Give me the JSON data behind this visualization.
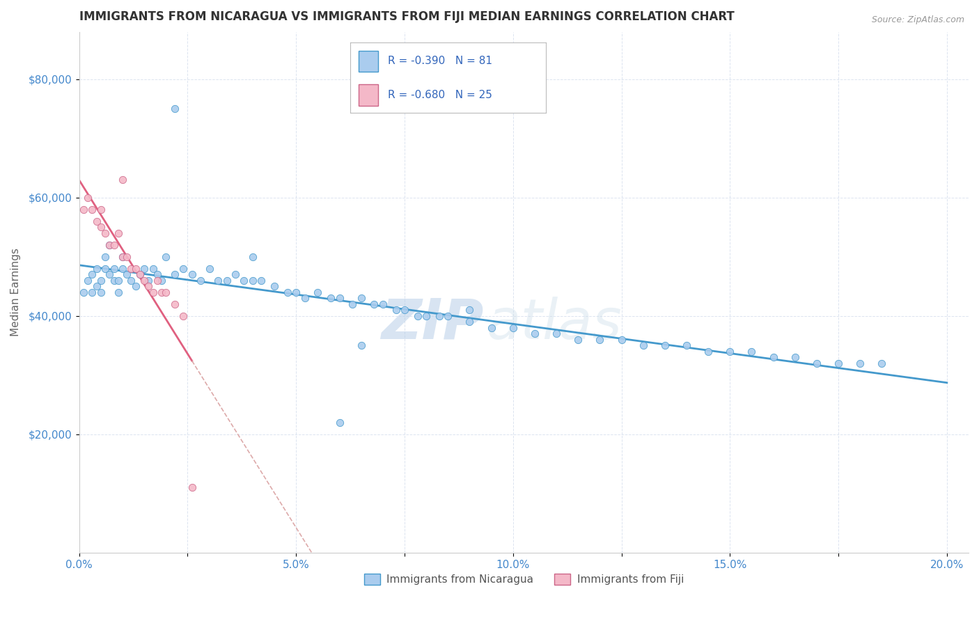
{
  "title": "IMMIGRANTS FROM NICARAGUA VS IMMIGRANTS FROM FIJI MEDIAN EARNINGS CORRELATION CHART",
  "source": "Source: ZipAtlas.com",
  "ylabel": "Median Earnings",
  "xlim": [
    0.0,
    0.205
  ],
  "ylim": [
    0,
    88000
  ],
  "xtick_labels": [
    "0.0%",
    "",
    "5.0%",
    "",
    "10.0%",
    "",
    "15.0%",
    "",
    "20.0%"
  ],
  "xtick_vals": [
    0.0,
    0.025,
    0.05,
    0.075,
    0.1,
    0.125,
    0.15,
    0.175,
    0.2
  ],
  "ytick_vals": [
    20000,
    40000,
    60000,
    80000
  ],
  "ytick_labels": [
    "$20,000",
    "$40,000",
    "$60,000",
    "$80,000"
  ],
  "nicaragua_color": "#aaccee",
  "fiji_color": "#f4b8c8",
  "nicaragua_line_color": "#4499cc",
  "fiji_line_color": "#e06080",
  "watermark_zip": "ZIP",
  "watermark_atlas": "atlas",
  "R_nicaragua": -0.39,
  "N_nicaragua": 81,
  "R_fiji": -0.68,
  "N_fiji": 25,
  "legend_label_nicaragua": "Immigrants from Nicaragua",
  "legend_label_fiji": "Immigrants from Fiji",
  "nicaragua_x": [
    0.001,
    0.002,
    0.003,
    0.003,
    0.004,
    0.004,
    0.005,
    0.005,
    0.006,
    0.006,
    0.007,
    0.007,
    0.008,
    0.008,
    0.009,
    0.009,
    0.01,
    0.01,
    0.011,
    0.012,
    0.013,
    0.014,
    0.015,
    0.016,
    0.017,
    0.018,
    0.019,
    0.02,
    0.022,
    0.024,
    0.026,
    0.028,
    0.03,
    0.032,
    0.034,
    0.036,
    0.038,
    0.04,
    0.042,
    0.045,
    0.048,
    0.05,
    0.052,
    0.055,
    0.058,
    0.06,
    0.063,
    0.065,
    0.068,
    0.07,
    0.073,
    0.075,
    0.078,
    0.08,
    0.083,
    0.085,
    0.09,
    0.095,
    0.1,
    0.105,
    0.11,
    0.115,
    0.12,
    0.125,
    0.13,
    0.135,
    0.14,
    0.145,
    0.15,
    0.155,
    0.16,
    0.165,
    0.17,
    0.175,
    0.18,
    0.185,
    0.04,
    0.022,
    0.065,
    0.06,
    0.09
  ],
  "nicaragua_y": [
    44000,
    46000,
    44000,
    47000,
    45000,
    48000,
    44000,
    46000,
    48000,
    50000,
    47000,
    52000,
    46000,
    48000,
    44000,
    46000,
    48000,
    50000,
    47000,
    46000,
    45000,
    47000,
    48000,
    46000,
    48000,
    47000,
    46000,
    50000,
    47000,
    48000,
    47000,
    46000,
    48000,
    46000,
    46000,
    47000,
    46000,
    46000,
    46000,
    45000,
    44000,
    44000,
    43000,
    44000,
    43000,
    43000,
    42000,
    43000,
    42000,
    42000,
    41000,
    41000,
    40000,
    40000,
    40000,
    40000,
    39000,
    38000,
    38000,
    37000,
    37000,
    36000,
    36000,
    36000,
    35000,
    35000,
    35000,
    34000,
    34000,
    34000,
    33000,
    33000,
    32000,
    32000,
    32000,
    32000,
    50000,
    75000,
    35000,
    22000,
    41000
  ],
  "fiji_x": [
    0.001,
    0.002,
    0.003,
    0.004,
    0.005,
    0.005,
    0.006,
    0.007,
    0.008,
    0.009,
    0.01,
    0.011,
    0.012,
    0.013,
    0.014,
    0.015,
    0.016,
    0.017,
    0.018,
    0.019,
    0.02,
    0.022,
    0.024,
    0.026,
    0.01
  ],
  "fiji_y": [
    58000,
    60000,
    58000,
    56000,
    55000,
    58000,
    54000,
    52000,
    52000,
    54000,
    50000,
    50000,
    48000,
    48000,
    47000,
    46000,
    45000,
    44000,
    46000,
    44000,
    44000,
    42000,
    40000,
    11000,
    63000
  ],
  "background_color": "#ffffff",
  "grid_color": "#dce4f0",
  "title_color": "#333333",
  "title_fontsize": 12,
  "axis_tick_color": "#4488cc",
  "source_color": "#999999"
}
